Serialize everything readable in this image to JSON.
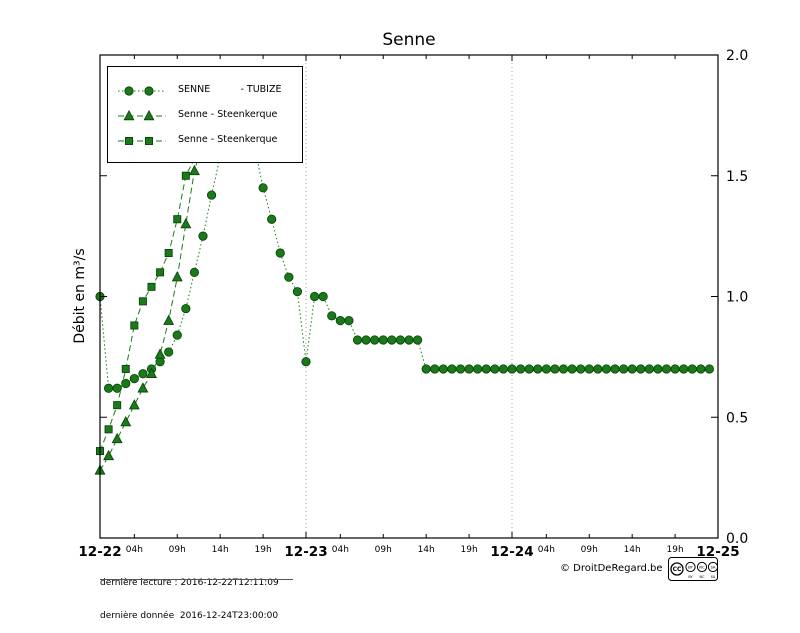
{
  "footer": {
    "last_reading": "dernière lecture : 2016-12-22T12:11:09",
    "last_data": "dernière donnée  2016-12-24T23:00:00",
    "copyright": "© DroitDeRegard.be",
    "license_parts": [
      "CC",
      "BY",
      "NC",
      "SA"
    ]
  },
  "chart_data": {
    "type": "line",
    "title": "Senne",
    "ylabel": "Débit en m³/s",
    "ylim": [
      0.0,
      2.0
    ],
    "yticks": [
      0.0,
      0.5,
      1.0,
      1.5,
      2.0
    ],
    "x_day_labels": [
      "12-22",
      "12-23",
      "12-24",
      "12-25"
    ],
    "x_hour_labels": [
      "04h",
      "09h",
      "14h",
      "19h"
    ],
    "x_hour_positions": [
      4,
      9,
      14,
      19
    ],
    "x_hours_span": 72,
    "grid_days": [
      24,
      48
    ],
    "grid": "vertical-dotted-day-boundaries",
    "legend_position": "upper-left",
    "colors": {
      "line": "#1a7a1a",
      "marker_fill": "#1a7a1a",
      "marker_edge": "#073f07",
      "grid": "#888888"
    },
    "series": [
      {
        "name": "SENNE          - TUBIZE",
        "marker": "circle",
        "linestyle": "dotted",
        "values": [
          1.0,
          0.62,
          0.62,
          0.64,
          0.66,
          0.68,
          0.7,
          0.73,
          0.77,
          0.84,
          0.95,
          1.1,
          1.25,
          1.42,
          1.58,
          1.7,
          1.76,
          1.74,
          1.62,
          1.45,
          1.32,
          1.18,
          1.08,
          1.02,
          0.73,
          1.0,
          1.0,
          0.92,
          0.9,
          0.9,
          0.82,
          0.82,
          0.82,
          0.82,
          0.82,
          0.82,
          0.82,
          0.82,
          0.7,
          0.7,
          0.7,
          0.7,
          0.7,
          0.7,
          0.7,
          0.7,
          0.7,
          0.7,
          0.7,
          0.7,
          0.7,
          0.7,
          0.7,
          0.7,
          0.7,
          0.7,
          0.7,
          0.7,
          0.7,
          0.7,
          0.7,
          0.7,
          0.7,
          0.7,
          0.7,
          0.7,
          0.7,
          0.7,
          0.7,
          0.7,
          0.7,
          0.7
        ]
      },
      {
        "name": "Senne - Steenkerque",
        "marker": "triangle",
        "linestyle": "dashed",
        "x": [
          0,
          1,
          2,
          3,
          4,
          5,
          6,
          7,
          8,
          9,
          10,
          11,
          12
        ],
        "values": [
          0.28,
          0.34,
          0.41,
          0.48,
          0.55,
          0.62,
          0.68,
          0.76,
          0.9,
          1.08,
          1.3,
          1.52,
          1.64
        ]
      },
      {
        "name": "Senne - Steenkerque",
        "marker": "square",
        "linestyle": "dashed",
        "x": [
          0,
          1,
          2,
          3,
          4,
          5,
          6,
          7,
          8,
          9,
          10,
          11
        ],
        "values": [
          0.36,
          0.45,
          0.55,
          0.7,
          0.88,
          0.98,
          1.04,
          1.1,
          1.18,
          1.32,
          1.5,
          1.57
        ]
      }
    ]
  }
}
